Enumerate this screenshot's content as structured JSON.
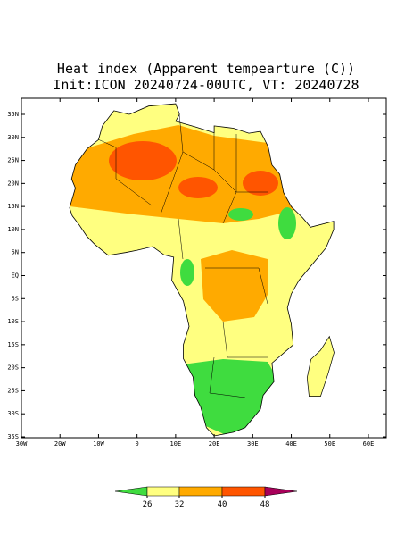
{
  "title": "Heat index (Apparent tempearture (C))",
  "subtitle": "Init:ICON 20240724-00UTC, VT: 20240728",
  "lat_ticks": [
    {
      "value": 35,
      "label": "35N"
    },
    {
      "value": 30,
      "label": "30N"
    },
    {
      "value": 25,
      "label": "25N"
    },
    {
      "value": 20,
      "label": "20N"
    },
    {
      "value": 15,
      "label": "15N"
    },
    {
      "value": 10,
      "label": "10N"
    },
    {
      "value": 5,
      "label": "5N"
    },
    {
      "value": 0,
      "label": "EQ"
    },
    {
      "value": -5,
      "label": "5S"
    },
    {
      "value": -10,
      "label": "10S"
    },
    {
      "value": -15,
      "label": "15S"
    },
    {
      "value": -20,
      "label": "20S"
    },
    {
      "value": -25,
      "label": "25S"
    },
    {
      "value": -30,
      "label": "30S"
    },
    {
      "value": -35,
      "label": "35S"
    }
  ],
  "lon_ticks": [
    {
      "value": -30,
      "label": "30W"
    },
    {
      "value": -20,
      "label": "20W"
    },
    {
      "value": -10,
      "label": "10W"
    },
    {
      "value": 0,
      "label": "0"
    },
    {
      "value": 10,
      "label": "10E"
    },
    {
      "value": 20,
      "label": "20E"
    },
    {
      "value": 30,
      "label": "30E"
    },
    {
      "value": 40,
      "label": "40E"
    },
    {
      "value": 50,
      "label": "50E"
    },
    {
      "value": 60,
      "label": "60E"
    }
  ],
  "colorbar": {
    "levels": [
      26,
      32,
      40,
      48
    ],
    "colors": [
      "#3fdc3f",
      "#ffff80",
      "#ffaa00",
      "#ff5500",
      "#a8005a"
    ]
  }
}
